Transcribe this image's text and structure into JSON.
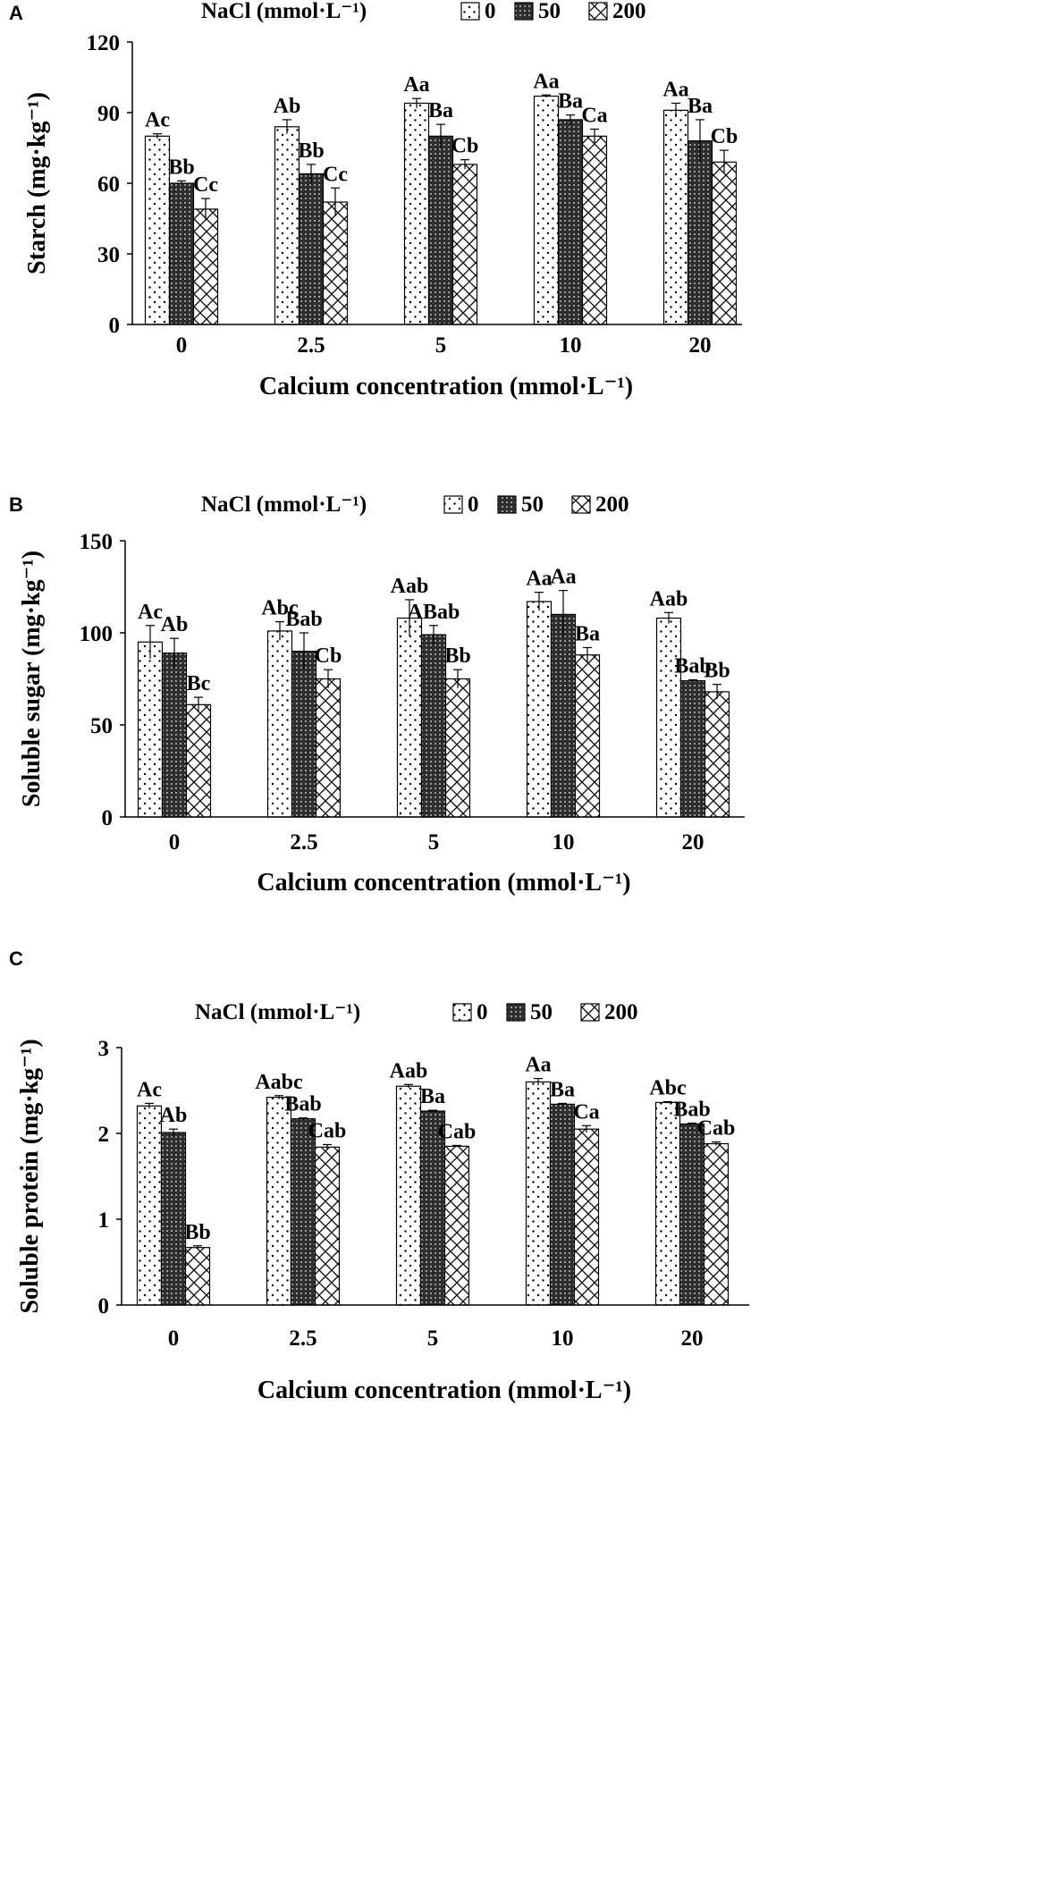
{
  "colors": {
    "axis": "#000000",
    "bar_fill": "#ffffff",
    "dots": "#000000",
    "dark": "#303030"
  },
  "chart_data": [
    {
      "panel": "A",
      "type": "bar",
      "xlabel": "Calcium concentration (mmol·L⁻¹)",
      "ylabel": "Starch (mg·kg⁻¹)",
      "ylim": [
        0,
        120
      ],
      "yticks": [
        0,
        30,
        60,
        90,
        120
      ],
      "categories": [
        "0",
        "2.5",
        "5",
        "10",
        "20"
      ],
      "legend": {
        "title": "NaCl (mmol·L⁻¹)",
        "position": "top",
        "entries": [
          "0",
          "50",
          "200"
        ]
      },
      "series": [
        {
          "name": "0",
          "pattern": "dots",
          "values": [
            80,
            84,
            94,
            97,
            91
          ],
          "errors": [
            1,
            3,
            2,
            0.5,
            3
          ],
          "labels": [
            "Ac",
            "Ab",
            "Aa",
            "Aa",
            "Aa"
          ]
        },
        {
          "name": "50",
          "pattern": "grid",
          "values": [
            60,
            64,
            80,
            87,
            78
          ],
          "errors": [
            1,
            4,
            5,
            2,
            9
          ],
          "labels": [
            "Bb",
            "Bb",
            "Ba",
            "Ba",
            "Ba"
          ]
        },
        {
          "name": "200",
          "pattern": "hatch",
          "values": [
            49,
            52,
            68,
            80,
            69
          ],
          "errors": [
            4.5,
            6,
            2,
            3,
            5
          ],
          "labels": [
            "Cc",
            "Cc",
            "Cb",
            "Ca",
            "Cb"
          ]
        }
      ]
    },
    {
      "panel": "B",
      "type": "bar",
      "xlabel": "Calcium concentration (mmol·L⁻¹)",
      "ylabel": "Soluble sugar (mg·kg⁻¹)",
      "ylim": [
        0,
        150
      ],
      "yticks": [
        0,
        50,
        100,
        150
      ],
      "categories": [
        "0",
        "2.5",
        "5",
        "10",
        "20"
      ],
      "legend": {
        "title": "NaCl (mmol·L⁻¹)",
        "position": "top",
        "entries": [
          "0",
          "50",
          "200"
        ]
      },
      "series": [
        {
          "name": "0",
          "pattern": "dots",
          "values": [
            95,
            101,
            108,
            117,
            108
          ],
          "errors": [
            9,
            5,
            10,
            5,
            3
          ],
          "labels": [
            "Ac",
            "Abc",
            "Aab",
            "Aa",
            "Aab"
          ]
        },
        {
          "name": "50",
          "pattern": "grid",
          "values": [
            89,
            90,
            99,
            110,
            74
          ],
          "errors": [
            8,
            10,
            5,
            13,
            0.5
          ],
          "labels": [
            "Ab",
            "Bab",
            "ABab",
            "Aa",
            "Bab"
          ]
        },
        {
          "name": "200",
          "pattern": "hatch",
          "values": [
            61,
            75,
            75,
            88,
            68
          ],
          "errors": [
            4,
            5,
            5,
            4,
            4
          ],
          "labels": [
            "Bc",
            "Cb",
            "Bb",
            "Ba",
            "Bb"
          ]
        }
      ]
    },
    {
      "panel": "C",
      "type": "bar",
      "xlabel": "Calcium concentration (mmol·L⁻¹)",
      "ylabel": "Soluble protein (mg·kg⁻¹)",
      "ylim": [
        0,
        3
      ],
      "yticks": [
        0,
        1,
        2,
        3
      ],
      "categories": [
        "0",
        "2.5",
        "5",
        "10",
        "20"
      ],
      "legend": {
        "title": "NaCl (mmol·L⁻¹)",
        "position": "top",
        "entries": [
          "0",
          "50",
          "200"
        ]
      },
      "series": [
        {
          "name": "0",
          "pattern": "dots",
          "values": [
            2.32,
            2.42,
            2.55,
            2.6,
            2.36
          ],
          "errors": [
            0.03,
            0.02,
            0.02,
            0.04,
            0.01
          ],
          "labels": [
            "Ac",
            "Aabc",
            "Aab",
            "Aa",
            "Abc"
          ]
        },
        {
          "name": "50",
          "pattern": "grid",
          "values": [
            2.01,
            2.17,
            2.26,
            2.34,
            2.11
          ],
          "errors": [
            0.04,
            0.01,
            0.01,
            0.01,
            0.01
          ],
          "labels": [
            "Ab",
            "Bab",
            "Ba",
            "Ba",
            "Bab"
          ]
        },
        {
          "name": "200",
          "pattern": "hatch",
          "values": [
            0.67,
            1.84,
            1.85,
            2.05,
            1.88
          ],
          "errors": [
            0.02,
            0.03,
            0.01,
            0.04,
            0.02
          ],
          "labels": [
            "Bb",
            "Cab",
            "Cab",
            "Ca",
            "Cab"
          ]
        }
      ]
    }
  ]
}
